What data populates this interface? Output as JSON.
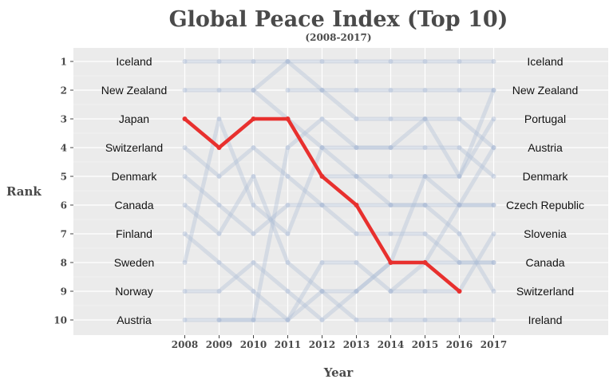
{
  "chart_data": {
    "type": "line",
    "title": "Global Peace Index (Top 10)",
    "subtitle": "(2008-2017)",
    "xlabel": "Year",
    "ylabel": "Rank",
    "x": [
      2008,
      2009,
      2010,
      2011,
      2012,
      2013,
      2014,
      2015,
      2016,
      2017
    ],
    "y_ticks": [
      1,
      2,
      3,
      4,
      5,
      6,
      7,
      8,
      9,
      10
    ],
    "ylim": [
      1,
      10
    ],
    "y_reversed": true,
    "left_labels": [
      "Iceland",
      "New Zealand",
      "Japan",
      "Switzerland",
      "Denmark",
      "Canada",
      "Finland",
      "Sweden",
      "Norway",
      "Austria"
    ],
    "right_labels": [
      "Iceland",
      "New Zealand",
      "Portugal",
      "Austria",
      "Denmark",
      "Czech Republic",
      "Slovenia",
      "Canada",
      "Switzerland",
      "Ireland"
    ],
    "highlight": {
      "name": "Japan",
      "color": "#e8302e",
      "x": [
        2008,
        2009,
        2010,
        2011,
        2012,
        2013,
        2014,
        2015,
        2016
      ],
      "values": [
        3,
        4,
        3,
        3,
        5,
        6,
        8,
        8,
        9
      ]
    },
    "background_series_color": "#aabbd4",
    "background_series": [
      {
        "x": [
          2008,
          2009,
          2010,
          2011,
          2012,
          2013,
          2014,
          2015,
          2016,
          2017
        ],
        "values": [
          1,
          1,
          1,
          1,
          1,
          1,
          1,
          1,
          1,
          1
        ]
      },
      {
        "x": [
          2008,
          2009,
          2010,
          2011,
          2012,
          2013,
          2014,
          2015,
          2016,
          2017
        ],
        "values": [
          2,
          2,
          2,
          1,
          2,
          3,
          3,
          3,
          3,
          4
        ]
      },
      {
        "x": [
          2010,
          2011,
          2012,
          2013,
          2014,
          2015,
          2016,
          2017
        ],
        "values": [
          2,
          3,
          4,
          5,
          5,
          5,
          5,
          3
        ]
      },
      {
        "x": [
          2011,
          2012,
          2013,
          2014,
          2015,
          2016,
          2017
        ],
        "values": [
          2,
          2,
          2,
          2,
          2,
          2,
          2
        ]
      },
      {
        "x": [
          2008,
          2009,
          2010,
          2011,
          2012,
          2013,
          2014,
          2015,
          2016,
          2017
        ],
        "values": [
          4,
          5,
          4,
          5,
          6,
          6,
          6,
          6,
          7,
          9
        ]
      },
      {
        "x": [
          2008,
          2009,
          2010,
          2011,
          2012,
          2013,
          2014,
          2015,
          2016,
          2017
        ],
        "values": [
          5,
          6,
          7,
          6,
          6,
          7,
          7,
          7,
          8,
          8
        ]
      },
      {
        "x": [
          2008,
          2009,
          2010,
          2011,
          2012,
          2013,
          2014,
          2015,
          2016,
          2017
        ],
        "values": [
          6,
          7,
          5,
          8,
          9,
          10,
          10,
          10,
          10,
          10
        ]
      },
      {
        "x": [
          2008,
          2009,
          2010,
          2011,
          2012,
          2013,
          2014,
          2015,
          2016,
          2017
        ],
        "values": [
          7,
          8,
          9,
          10,
          8,
          8,
          9,
          9,
          9,
          7
        ]
      },
      {
        "x": [
          2008,
          2009,
          2010,
          2011,
          2012,
          2013,
          2014,
          2015,
          2016,
          2017
        ],
        "values": [
          8,
          3,
          6,
          7,
          4,
          4,
          4,
          4,
          4,
          5
        ]
      },
      {
        "x": [
          2008,
          2009,
          2010,
          2011,
          2012,
          2013,
          2014,
          2015,
          2016,
          2017
        ],
        "values": [
          9,
          9,
          8,
          9,
          10,
          9,
          8,
          5,
          6,
          6
        ]
      },
      {
        "x": [
          2008,
          2009,
          2010,
          2011,
          2012,
          2013,
          2014,
          2015,
          2016,
          2017
        ],
        "values": [
          10,
          10,
          10,
          4,
          3,
          4,
          4,
          3,
          5,
          2
        ]
      },
      {
        "x": [
          2009,
          2010,
          2011,
          2012,
          2013,
          2014,
          2015,
          2016,
          2017
        ],
        "values": [
          10,
          10,
          10,
          9,
          9,
          8,
          8,
          8,
          8
        ]
      },
      {
        "x": [
          2012,
          2013,
          2014,
          2015,
          2016,
          2017
        ],
        "values": [
          5,
          5,
          6,
          6,
          6,
          6
        ]
      },
      {
        "x": [
          2014,
          2015,
          2016,
          2017
        ],
        "values": [
          9,
          8,
          6,
          4
        ]
      }
    ],
    "grid": true,
    "legend": "none"
  }
}
